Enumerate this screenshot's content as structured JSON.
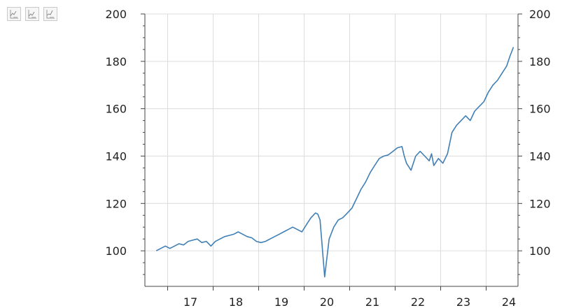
{
  "toolbar": {
    "buttons": [
      {
        "icon": "chart-range-icon-1"
      },
      {
        "icon": "chart-range-icon-2"
      },
      {
        "icon": "chart-range-icon-3"
      }
    ]
  },
  "colors": {
    "series": "#3f7fb5",
    "grid": "#dcdcdc",
    "axis": "#444444"
  },
  "chart_data": {
    "type": "line",
    "title": "",
    "xlabel": "",
    "ylabel": "",
    "grid": true,
    "legend": "none",
    "ylim": [
      85,
      200
    ],
    "xlim": [
      2016.5,
      2024.7
    ],
    "y_ticks": [
      100,
      120,
      140,
      160,
      180,
      200
    ],
    "y_tick_labels": [
      "100",
      "120",
      "140",
      "160",
      "180",
      "200"
    ],
    "x_ticks": [
      2017,
      2018,
      2019,
      2020,
      2021,
      2022,
      2023,
      2024
    ],
    "x_tick_labels": [
      "17",
      "18",
      "19",
      "20",
      "21",
      "22",
      "23",
      "24"
    ],
    "series": [
      {
        "color": "#3f7fb5",
        "x": [
          2016.75,
          2016.85,
          2016.95,
          2017.05,
          2017.15,
          2017.25,
          2017.35,
          2017.45,
          2017.55,
          2017.65,
          2017.75,
          2017.85,
          2017.95,
          2018.05,
          2018.15,
          2018.25,
          2018.35,
          2018.45,
          2018.55,
          2018.65,
          2018.75,
          2018.85,
          2018.95,
          2019.05,
          2019.15,
          2019.25,
          2019.35,
          2019.45,
          2019.55,
          2019.65,
          2019.75,
          2019.85,
          2019.95,
          2020.05,
          2020.1,
          2020.15,
          2020.2,
          2020.25,
          2020.3,
          2020.35,
          2020.45,
          2020.55,
          2020.65,
          2020.75,
          2020.85,
          2020.95,
          2021.05,
          2021.15,
          2021.25,
          2021.35,
          2021.45,
          2021.55,
          2021.65,
          2021.75,
          2021.85,
          2021.95,
          2022.05,
          2022.15,
          2022.2,
          2022.25,
          2022.35,
          2022.45,
          2022.55,
          2022.65,
          2022.75,
          2022.8,
          2022.85,
          2022.95,
          2023.05,
          2023.15,
          2023.25,
          2023.35,
          2023.45,
          2023.55,
          2023.65,
          2023.75,
          2023.85,
          2023.95,
          2024.05,
          2024.15,
          2024.25,
          2024.35,
          2024.45,
          2024.52,
          2024.6
        ],
        "y": [
          100,
          101,
          102,
          101,
          102,
          103,
          102.5,
          104,
          104.5,
          105,
          103.5,
          104,
          102,
          104,
          105,
          106,
          106.5,
          107,
          108,
          107,
          106,
          105.5,
          104,
          103.5,
          104,
          105,
          106,
          107,
          108,
          109,
          110,
          109,
          108,
          111,
          112.5,
          114,
          115,
          116,
          115.5,
          113,
          89,
          105,
          110,
          113,
          114,
          116,
          118,
          122,
          126,
          129,
          133,
          136,
          139,
          140,
          140.5,
          142,
          143.5,
          144,
          140,
          137,
          134,
          140,
          142,
          140,
          138,
          141,
          136,
          139,
          137,
          141,
          150,
          153,
          155,
          157,
          155,
          159,
          161,
          163,
          167,
          170,
          172,
          175,
          178,
          182,
          186
        ]
      }
    ]
  }
}
